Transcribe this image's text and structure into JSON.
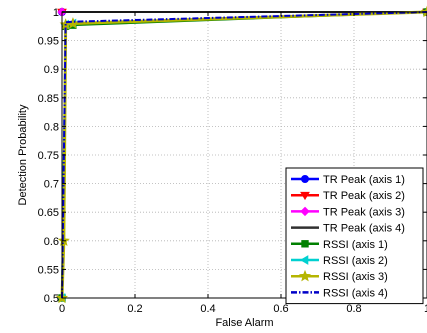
{
  "chart_data": {
    "type": "line",
    "xlabel": "False Alarm",
    "ylabel": "Detection Probability",
    "xlim": [
      0,
      1
    ],
    "ylim": [
      0.5,
      1
    ],
    "grid": true,
    "legend_position": "bottom-right",
    "x_ticks": [
      "0",
      "0.2",
      "0.4",
      "0.6",
      "0.8",
      "1"
    ],
    "y_ticks": [
      "0.5",
      "0.55",
      "0.6",
      "0.65",
      "0.7",
      "0.75",
      "0.8",
      "0.85",
      "0.9",
      "0.95",
      "1"
    ],
    "series": [
      {
        "name": "TR Peak (axis 1)",
        "color": "#0000ff",
        "marker": "circle",
        "dash": "solid",
        "points": [
          [
            0,
            1
          ],
          [
            1,
            1
          ]
        ]
      },
      {
        "name": "TR Peak (axis 2)",
        "color": "#ff0000",
        "marker": "triangle-down",
        "dash": "solid",
        "points": [
          [
            0,
            1
          ],
          [
            1,
            1
          ]
        ]
      },
      {
        "name": "TR Peak (axis 3)",
        "color": "#ff00ff",
        "marker": "diamond",
        "dash": "solid",
        "points": [
          [
            0,
            1
          ],
          [
            1,
            1
          ]
        ]
      },
      {
        "name": "TR Peak (axis 4)",
        "color": "#303030",
        "marker": "none",
        "dash": "solid",
        "points": [
          [
            0,
            1
          ],
          [
            1,
            1
          ]
        ]
      },
      {
        "name": "RSSI (axis 1)",
        "color": "#008000",
        "marker": "square",
        "dash": "solid",
        "points": [
          [
            0,
            0.5
          ],
          [
            0.01,
            0.975
          ],
          [
            0.03,
            0.977
          ],
          [
            1,
            1
          ]
        ]
      },
      {
        "name": "RSSI (axis 2)",
        "color": "#00d0d0",
        "marker": "triangle-left",
        "dash": "solid",
        "points": [
          [
            0,
            0.5
          ],
          [
            0.01,
            0.978
          ],
          [
            0.03,
            0.98
          ],
          [
            1,
            1
          ]
        ]
      },
      {
        "name": "RSSI (axis 3)",
        "color": "#b5b500",
        "marker": "star",
        "dash": "solid",
        "points": [
          [
            0,
            0.5
          ],
          [
            0.005,
            0.6
          ],
          [
            0.01,
            0.978
          ],
          [
            0.03,
            0.98
          ],
          [
            1,
            1
          ]
        ]
      },
      {
        "name": "RSSI (axis 4)",
        "color": "#0000c8",
        "marker": "none",
        "dash": "dashdot",
        "points": [
          [
            0,
            0.5
          ],
          [
            0.01,
            0.982
          ],
          [
            0.03,
            0.983
          ],
          [
            1,
            1
          ]
        ]
      }
    ]
  }
}
